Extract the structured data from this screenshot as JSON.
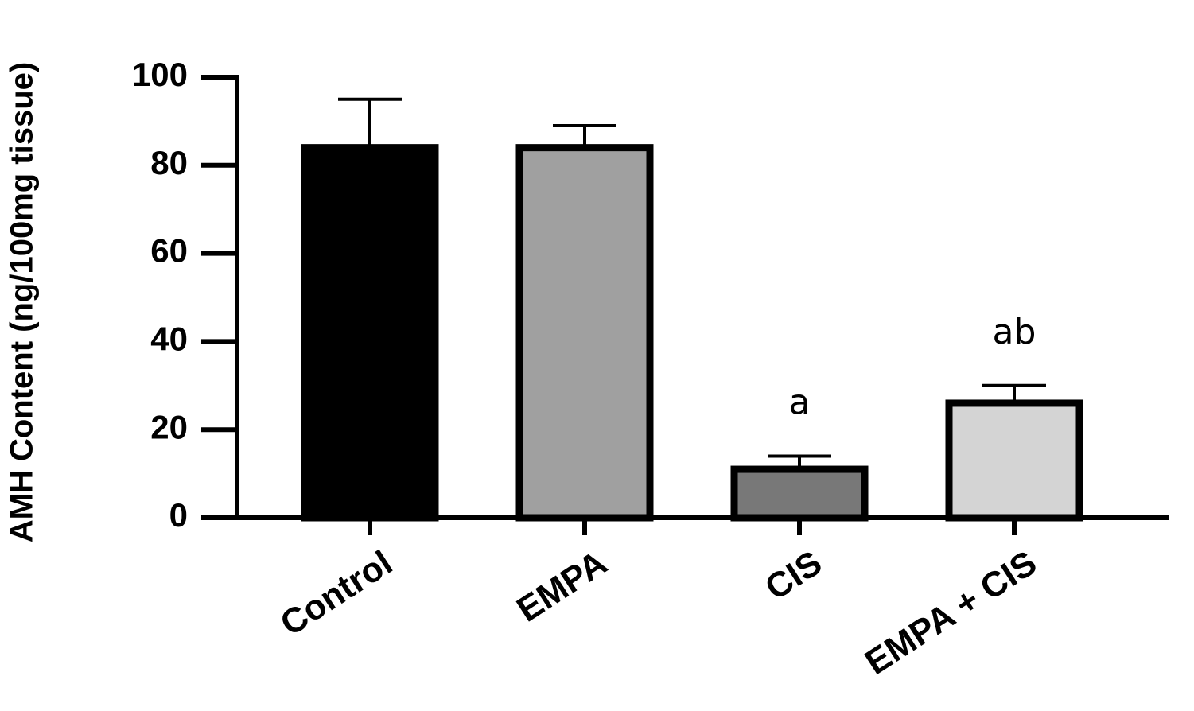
{
  "chart_data": {
    "type": "bar",
    "y_label": "AMH Content (ng/100mg tissue)",
    "categories": [
      "Control",
      "EMPA",
      "CIS",
      "EMPA + CIS"
    ],
    "values": [
      84,
      84,
      11,
      26
    ],
    "errors": [
      11,
      5,
      3,
      4
    ],
    "colors": [
      "#000000",
      "#a0a0a0",
      "#787878",
      "#d4d4d4"
    ],
    "annotations": [
      {
        "category": "CIS",
        "text": "a"
      },
      {
        "category": "EMPA + CIS",
        "text": "ab"
      }
    ],
    "ylim": [
      0,
      100
    ],
    "yticks": [
      0,
      20,
      40,
      60,
      80,
      100
    ]
  }
}
